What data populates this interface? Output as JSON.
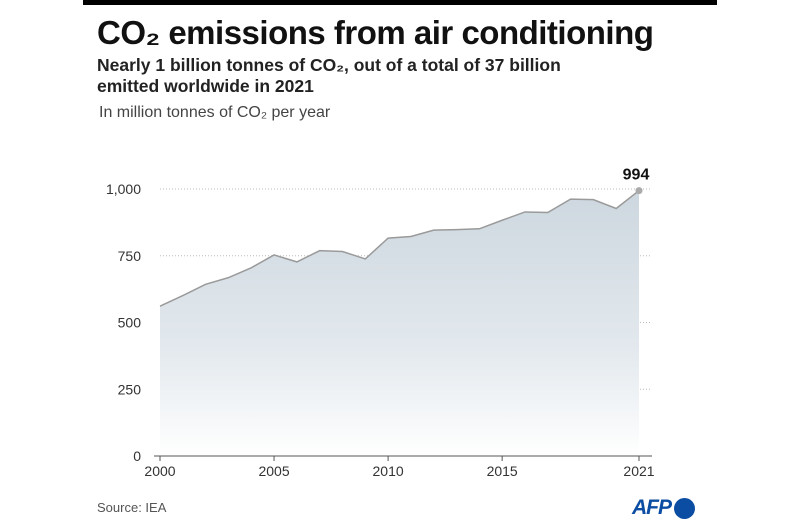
{
  "title": "CO₂ emissions from air conditioning",
  "subtitle": "Nearly 1 billion tonnes of CO₂, out of a total of 37 billion emitted worldwide in 2021",
  "unit_label": "In million tonnes of CO₂ per year",
  "source": "Source: IEA",
  "logo": "AFP",
  "colors": {
    "fill_top": "#cdd7df",
    "line": "#9a9a9a",
    "logo": "#0a4da2"
  },
  "chart_data": {
    "type": "area",
    "x": [
      2000,
      2001,
      2002,
      2003,
      2004,
      2005,
      2006,
      2007,
      2008,
      2009,
      2010,
      2011,
      2012,
      2013,
      2014,
      2015,
      2016,
      2017,
      2018,
      2019,
      2020,
      2021
    ],
    "values": [
      561,
      601,
      643,
      668,
      705,
      753,
      727,
      769,
      766,
      738,
      816,
      822,
      846,
      848,
      851,
      883,
      914,
      912,
      962,
      960,
      927,
      994
    ],
    "ylim": [
      0,
      1000
    ],
    "xlim": [
      2000,
      2021
    ],
    "yticks": [
      0,
      250,
      500,
      750,
      1000
    ],
    "ytick_labels": [
      "0",
      "250",
      "500",
      "750",
      "1,000"
    ],
    "xticks": [
      2000,
      2005,
      2010,
      2015,
      2021
    ],
    "xtick_labels": [
      "2000",
      "2005",
      "2010",
      "2015",
      "2021"
    ],
    "grid": true,
    "annotation": {
      "x": 2021,
      "label": "994"
    }
  }
}
